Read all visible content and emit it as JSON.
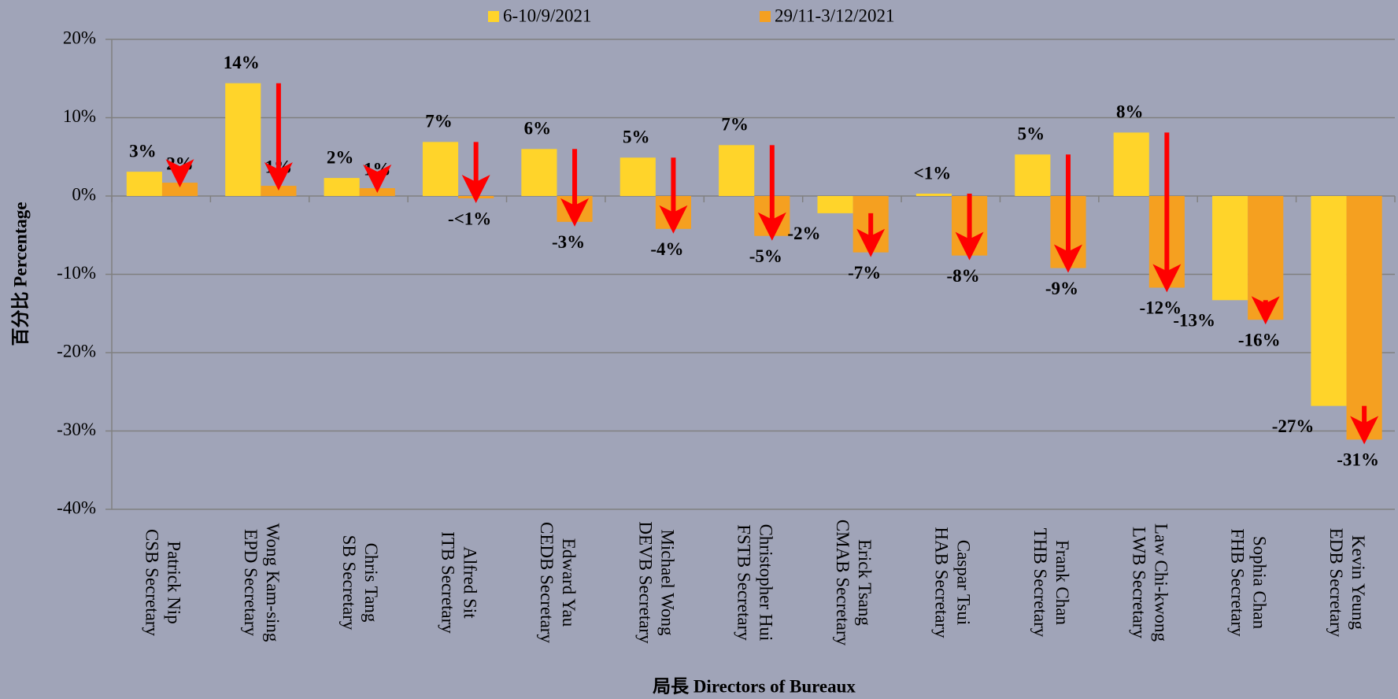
{
  "chart_data": {
    "type": "bar",
    "x_label": "局長 Directors of Bureaux",
    "y_label": "百分比 Percentage",
    "categories": [
      [
        "Patrick Nip",
        "CSB Secretary"
      ],
      [
        "Wong Kam-sing",
        "EPD Secretary"
      ],
      [
        "Chris Tang",
        "SB Secretary"
      ],
      [
        "Alfred Sit",
        "ITB Secretary"
      ],
      [
        "Edward Yau",
        "CEDB Secretary"
      ],
      [
        "Michael Wong",
        "DEVB Secretary"
      ],
      [
        "Christopher Hui",
        "FSTB Secretary"
      ],
      [
        "Erick Tsang",
        "CMAB Secretary"
      ],
      [
        "Caspar Tsui",
        "HAB Secretary"
      ],
      [
        "Frank Chan",
        "THB Secretary"
      ],
      [
        "Law Chi-kwong",
        "LWB Secretary"
      ],
      [
        "Sophia Chan",
        "FHB Secretary"
      ],
      [
        "Kevin Yeung",
        "EDB Secretary"
      ]
    ],
    "series": [
      {
        "name": "6-10/9/2021",
        "color": "#ffd42a",
        "values": [
          3.1,
          14.4,
          2.3,
          6.9,
          6.0,
          4.9,
          6.5,
          -2.2,
          0.3,
          5.3,
          8.1,
          -13.3,
          -26.8
        ],
        "value_labels": [
          "3%",
          "14%",
          "2%",
          "7%",
          "6%",
          "5%",
          "7%",
          "-2%",
          "<1%",
          "5%",
          "8%",
          "-13%",
          "-27%"
        ]
      },
      {
        "name": "29/11-3/12/2021",
        "color": "#f5a020",
        "values": [
          1.7,
          1.3,
          1.0,
          -0.3,
          -3.3,
          -4.2,
          -5.1,
          -7.2,
          -7.6,
          -9.2,
          -11.7,
          -15.8,
          -31.1
        ],
        "value_labels": [
          "2%",
          "1%",
          "1%",
          "-<1%",
          "-3%",
          "-4%",
          "-5%",
          "-7%",
          "-8%",
          "-9%",
          "-12%",
          "-16%",
          "-31%"
        ]
      }
    ],
    "ylim": [
      -40,
      20
    ],
    "yticks": [
      {
        "value": -40,
        "label": "-40%"
      },
      {
        "value": -30,
        "label": "-30%"
      },
      {
        "value": -20,
        "label": "-20%"
      },
      {
        "value": -10,
        "label": "-10%"
      },
      {
        "value": 0,
        "label": "0%"
      },
      {
        "value": 10,
        "label": "10%"
      },
      {
        "value": 20,
        "label": "20%"
      }
    ],
    "grid": true,
    "legend": "top",
    "arrow_color": "#ff0000"
  }
}
